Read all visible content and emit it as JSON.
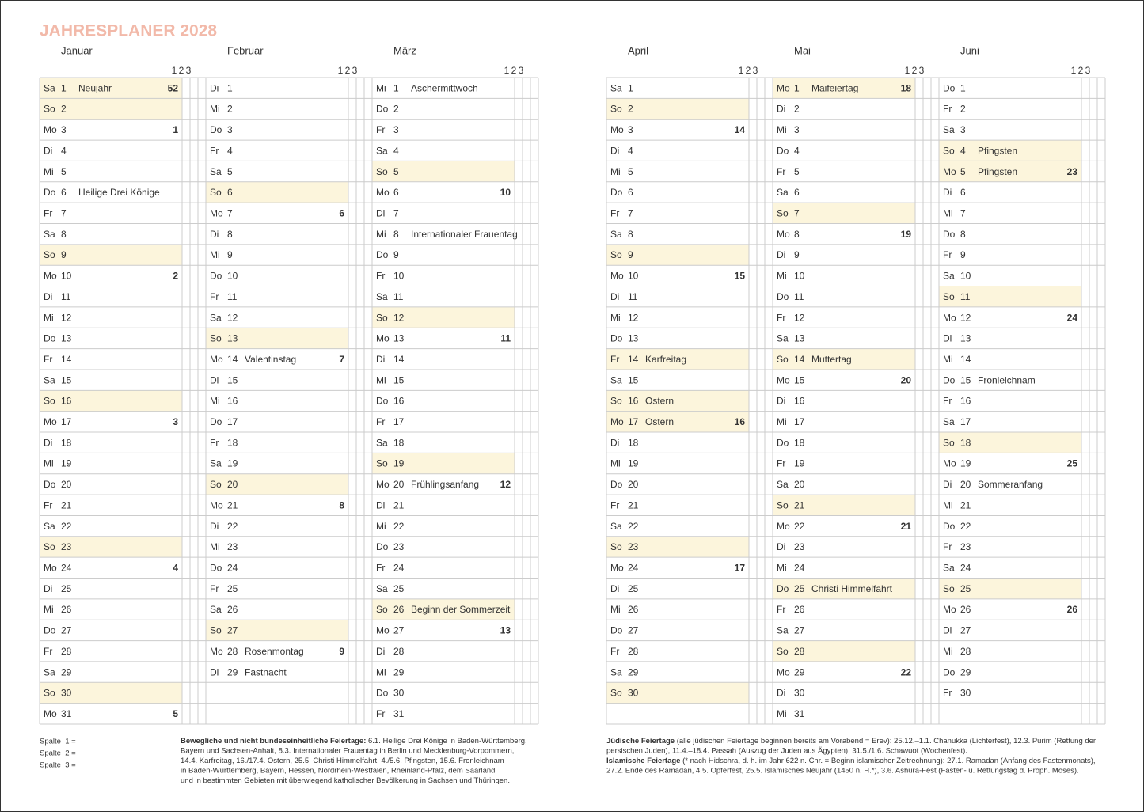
{
  "header": {
    "title": "JAHRESPLANER 2028"
  },
  "column_numbers": [
    "1",
    "2",
    "3"
  ],
  "months": [
    {
      "name": "Januar",
      "days": [
        {
          "wd": "Sa",
          "day": 1,
          "holiday": "Neujahr",
          "week": 52,
          "shaded": true
        },
        {
          "wd": "So",
          "day": 2,
          "shaded": true
        },
        {
          "wd": "Mo",
          "day": 3,
          "week": 1
        },
        {
          "wd": "Di",
          "day": 4
        },
        {
          "wd": "Mi",
          "day": 5
        },
        {
          "wd": "Do",
          "day": 6,
          "holiday": "Heilige Drei Könige"
        },
        {
          "wd": "Fr",
          "day": 7
        },
        {
          "wd": "Sa",
          "day": 8
        },
        {
          "wd": "So",
          "day": 9,
          "shaded": true
        },
        {
          "wd": "Mo",
          "day": 10,
          "week": 2
        },
        {
          "wd": "Di",
          "day": 11
        },
        {
          "wd": "Mi",
          "day": 12
        },
        {
          "wd": "Do",
          "day": 13
        },
        {
          "wd": "Fr",
          "day": 14
        },
        {
          "wd": "Sa",
          "day": 15
        },
        {
          "wd": "So",
          "day": 16,
          "shaded": true
        },
        {
          "wd": "Mo",
          "day": 17,
          "week": 3
        },
        {
          "wd": "Di",
          "day": 18
        },
        {
          "wd": "Mi",
          "day": 19
        },
        {
          "wd": "Do",
          "day": 20
        },
        {
          "wd": "Fr",
          "day": 21
        },
        {
          "wd": "Sa",
          "day": 22
        },
        {
          "wd": "So",
          "day": 23,
          "shaded": true
        },
        {
          "wd": "Mo",
          "day": 24,
          "week": 4
        },
        {
          "wd": "Di",
          "day": 25
        },
        {
          "wd": "Mi",
          "day": 26
        },
        {
          "wd": "Do",
          "day": 27
        },
        {
          "wd": "Fr",
          "day": 28
        },
        {
          "wd": "Sa",
          "day": 29
        },
        {
          "wd": "So",
          "day": 30,
          "shaded": true
        },
        {
          "wd": "Mo",
          "day": 31,
          "week": 5
        }
      ]
    },
    {
      "name": "Februar",
      "days": [
        {
          "wd": "Di",
          "day": 1
        },
        {
          "wd": "Mi",
          "day": 2
        },
        {
          "wd": "Do",
          "day": 3
        },
        {
          "wd": "Fr",
          "day": 4
        },
        {
          "wd": "Sa",
          "day": 5
        },
        {
          "wd": "So",
          "day": 6,
          "shaded": true
        },
        {
          "wd": "Mo",
          "day": 7,
          "week": 6
        },
        {
          "wd": "Di",
          "day": 8
        },
        {
          "wd": "Mi",
          "day": 9
        },
        {
          "wd": "Do",
          "day": 10
        },
        {
          "wd": "Fr",
          "day": 11
        },
        {
          "wd": "Sa",
          "day": 12
        },
        {
          "wd": "So",
          "day": 13,
          "shaded": true
        },
        {
          "wd": "Mo",
          "day": 14,
          "holiday": "Valentinstag",
          "week": 7
        },
        {
          "wd": "Di",
          "day": 15
        },
        {
          "wd": "Mi",
          "day": 16
        },
        {
          "wd": "Do",
          "day": 17
        },
        {
          "wd": "Fr",
          "day": 18
        },
        {
          "wd": "Sa",
          "day": 19
        },
        {
          "wd": "So",
          "day": 20,
          "shaded": true
        },
        {
          "wd": "Mo",
          "day": 21,
          "week": 8
        },
        {
          "wd": "Di",
          "day": 22
        },
        {
          "wd": "Mi",
          "day": 23
        },
        {
          "wd": "Do",
          "day": 24
        },
        {
          "wd": "Fr",
          "day": 25
        },
        {
          "wd": "Sa",
          "day": 26
        },
        {
          "wd": "So",
          "day": 27,
          "shaded": true
        },
        {
          "wd": "Mo",
          "day": 28,
          "holiday": "Rosenmontag",
          "week": 9
        },
        {
          "wd": "Di",
          "day": 29,
          "holiday": "Fastnacht"
        }
      ]
    },
    {
      "name": "März",
      "days": [
        {
          "wd": "Mi",
          "day": 1,
          "holiday": "Aschermittwoch"
        },
        {
          "wd": "Do",
          "day": 2
        },
        {
          "wd": "Fr",
          "day": 3
        },
        {
          "wd": "Sa",
          "day": 4
        },
        {
          "wd": "So",
          "day": 5,
          "shaded": true
        },
        {
          "wd": "Mo",
          "day": 6,
          "week": 10
        },
        {
          "wd": "Di",
          "day": 7
        },
        {
          "wd": "Mi",
          "day": 8,
          "holiday": "Internationaler Frauentag"
        },
        {
          "wd": "Do",
          "day": 9
        },
        {
          "wd": "Fr",
          "day": 10
        },
        {
          "wd": "Sa",
          "day": 11
        },
        {
          "wd": "So",
          "day": 12,
          "shaded": true
        },
        {
          "wd": "Mo",
          "day": 13,
          "week": 11
        },
        {
          "wd": "Di",
          "day": 14
        },
        {
          "wd": "Mi",
          "day": 15
        },
        {
          "wd": "Do",
          "day": 16
        },
        {
          "wd": "Fr",
          "day": 17
        },
        {
          "wd": "Sa",
          "day": 18
        },
        {
          "wd": "So",
          "day": 19,
          "shaded": true
        },
        {
          "wd": "Mo",
          "day": 20,
          "holiday": "Frühlingsanfang",
          "week": 12
        },
        {
          "wd": "Di",
          "day": 21
        },
        {
          "wd": "Mi",
          "day": 22
        },
        {
          "wd": "Do",
          "day": 23
        },
        {
          "wd": "Fr",
          "day": 24
        },
        {
          "wd": "Sa",
          "day": 25
        },
        {
          "wd": "So",
          "day": 26,
          "holiday": "Beginn der Sommerzeit",
          "shaded": true
        },
        {
          "wd": "Mo",
          "day": 27,
          "week": 13
        },
        {
          "wd": "Di",
          "day": 28
        },
        {
          "wd": "Mi",
          "day": 29
        },
        {
          "wd": "Do",
          "day": 30
        },
        {
          "wd": "Fr",
          "day": 31
        }
      ]
    },
    {
      "name": "April",
      "days": [
        {
          "wd": "Sa",
          "day": 1
        },
        {
          "wd": "So",
          "day": 2,
          "shaded": true
        },
        {
          "wd": "Mo",
          "day": 3,
          "week": 14
        },
        {
          "wd": "Di",
          "day": 4
        },
        {
          "wd": "Mi",
          "day": 5
        },
        {
          "wd": "Do",
          "day": 6
        },
        {
          "wd": "Fr",
          "day": 7
        },
        {
          "wd": "Sa",
          "day": 8
        },
        {
          "wd": "So",
          "day": 9,
          "shaded": true
        },
        {
          "wd": "Mo",
          "day": 10,
          "week": 15
        },
        {
          "wd": "Di",
          "day": 11
        },
        {
          "wd": "Mi",
          "day": 12
        },
        {
          "wd": "Do",
          "day": 13
        },
        {
          "wd": "Fr",
          "day": 14,
          "holiday": "Karfreitag",
          "shaded": true
        },
        {
          "wd": "Sa",
          "day": 15
        },
        {
          "wd": "So",
          "day": 16,
          "holiday": "Ostern",
          "shaded": true
        },
        {
          "wd": "Mo",
          "day": 17,
          "holiday": "Ostern",
          "week": 16,
          "shaded": true
        },
        {
          "wd": "Di",
          "day": 18
        },
        {
          "wd": "Mi",
          "day": 19
        },
        {
          "wd": "Do",
          "day": 20
        },
        {
          "wd": "Fr",
          "day": 21
        },
        {
          "wd": "Sa",
          "day": 22
        },
        {
          "wd": "So",
          "day": 23,
          "shaded": true
        },
        {
          "wd": "Mo",
          "day": 24,
          "week": 17
        },
        {
          "wd": "Di",
          "day": 25
        },
        {
          "wd": "Mi",
          "day": 26
        },
        {
          "wd": "Do",
          "day": 27
        },
        {
          "wd": "Fr",
          "day": 28
        },
        {
          "wd": "Sa",
          "day": 29
        },
        {
          "wd": "So",
          "day": 30,
          "shaded": true
        }
      ]
    },
    {
      "name": "Mai",
      "days": [
        {
          "wd": "Mo",
          "day": 1,
          "holiday": "Maifeiertag",
          "week": 18,
          "shaded": true
        },
        {
          "wd": "Di",
          "day": 2
        },
        {
          "wd": "Mi",
          "day": 3
        },
        {
          "wd": "Do",
          "day": 4
        },
        {
          "wd": "Fr",
          "day": 5
        },
        {
          "wd": "Sa",
          "day": 6
        },
        {
          "wd": "So",
          "day": 7,
          "shaded": true
        },
        {
          "wd": "Mo",
          "day": 8,
          "week": 19
        },
        {
          "wd": "Di",
          "day": 9
        },
        {
          "wd": "Mi",
          "day": 10
        },
        {
          "wd": "Do",
          "day": 11
        },
        {
          "wd": "Fr",
          "day": 12
        },
        {
          "wd": "Sa",
          "day": 13
        },
        {
          "wd": "So",
          "day": 14,
          "holiday": "Muttertag",
          "shaded": true
        },
        {
          "wd": "Mo",
          "day": 15,
          "week": 20
        },
        {
          "wd": "Di",
          "day": 16
        },
        {
          "wd": "Mi",
          "day": 17
        },
        {
          "wd": "Do",
          "day": 18
        },
        {
          "wd": "Fr",
          "day": 19
        },
        {
          "wd": "Sa",
          "day": 20
        },
        {
          "wd": "So",
          "day": 21,
          "shaded": true
        },
        {
          "wd": "Mo",
          "day": 22,
          "week": 21
        },
        {
          "wd": "Di",
          "day": 23
        },
        {
          "wd": "Mi",
          "day": 24
        },
        {
          "wd": "Do",
          "day": 25,
          "holiday": "Christi Himmelfahrt",
          "shaded": true
        },
        {
          "wd": "Fr",
          "day": 26
        },
        {
          "wd": "Sa",
          "day": 27
        },
        {
          "wd": "So",
          "day": 28,
          "shaded": true
        },
        {
          "wd": "Mo",
          "day": 29,
          "week": 22
        },
        {
          "wd": "Di",
          "day": 30
        },
        {
          "wd": "Mi",
          "day": 31
        }
      ]
    },
    {
      "name": "Juni",
      "days": [
        {
          "wd": "Do",
          "day": 1
        },
        {
          "wd": "Fr",
          "day": 2
        },
        {
          "wd": "Sa",
          "day": 3
        },
        {
          "wd": "So",
          "day": 4,
          "holiday": "Pfingsten",
          "shaded": true
        },
        {
          "wd": "Mo",
          "day": 5,
          "holiday": "Pfingsten",
          "week": 23,
          "shaded": true
        },
        {
          "wd": "Di",
          "day": 6
        },
        {
          "wd": "Mi",
          "day": 7
        },
        {
          "wd": "Do",
          "day": 8
        },
        {
          "wd": "Fr",
          "day": 9
        },
        {
          "wd": "Sa",
          "day": 10
        },
        {
          "wd": "So",
          "day": 11,
          "shaded": true
        },
        {
          "wd": "Mo",
          "day": 12,
          "week": 24
        },
        {
          "wd": "Di",
          "day": 13
        },
        {
          "wd": "Mi",
          "day": 14
        },
        {
          "wd": "Do",
          "day": 15,
          "holiday": "Fronleichnam"
        },
        {
          "wd": "Fr",
          "day": 16
        },
        {
          "wd": "Sa",
          "day": 17
        },
        {
          "wd": "So",
          "day": 18,
          "shaded": true
        },
        {
          "wd": "Mo",
          "day": 19,
          "week": 25
        },
        {
          "wd": "Di",
          "day": 20,
          "holiday": "Sommeranfang"
        },
        {
          "wd": "Mi",
          "day": 21
        },
        {
          "wd": "Do",
          "day": 22
        },
        {
          "wd": "Fr",
          "day": 23
        },
        {
          "wd": "Sa",
          "day": 24
        },
        {
          "wd": "So",
          "day": 25,
          "shaded": true
        },
        {
          "wd": "Mo",
          "day": 26,
          "week": 26
        },
        {
          "wd": "Di",
          "day": 27
        },
        {
          "wd": "Mi",
          "day": 28
        },
        {
          "wd": "Do",
          "day": 29
        },
        {
          "wd": "Fr",
          "day": 30
        }
      ]
    }
  ],
  "legend": [
    "Spalte  1 =",
    "Spalte  2 =",
    "Spalte  3 ="
  ],
  "notes_left": {
    "lead": "Bewegliche und nicht bundeseinheitliche Feiertage:",
    "lines": [
      " 6.1. Heilige Drei Könige in Baden-Württemberg,",
      "Bayern und Sachsen-Anhalt, 8.3. Internationaler Frauentag in Berlin und Mecklenburg-Vorpommern,",
      "14.4. Karfreitag, 16./17.4. Ostern, 25.5. Christi Himmelfahrt, 4./5.6. Pfingsten, 15.6. Fronleichnam",
      "in Baden-Württemberg, Bayern, Hessen, Nordrhein-Westfalen, Rheinland-Pfalz, dem Saarland",
      "und in bestimmten Gebieten mit überwiegend katholischer Bevölkerung in Sachsen und Thüringen."
    ]
  },
  "notes_right": [
    {
      "lead": "Jüdische Feiertage",
      "lines": [
        " (alle jüdischen Feiertage beginnen bereits am Vorabend = Erev): 25.12.–1.1. Chanukka (Lichterfest), 12.3. Purim (Rettung der",
        "persischen Juden), 11.4.–18.4. Passah (Auszug der Juden aus Ägypten), 31.5./1.6. Schawuot (Wochenfest)."
      ]
    },
    {
      "lead": "Islamische Feiertage",
      "lines": [
        " (* nach Hidschra, d. h. im Jahr 622 n. Chr. = Beginn islamischer Zeitrechnung): 27.1. Ramadan (Anfang des Fastenmonats),",
        "27.2. Ende des Ramadan, 4.5. Opferfest, 25.5. Islamisches Neujahr (1450 n. H.*), 3.6. Ashura-Fest (Fasten- u. Rettungstag d. Proph. Moses)."
      ]
    }
  ]
}
